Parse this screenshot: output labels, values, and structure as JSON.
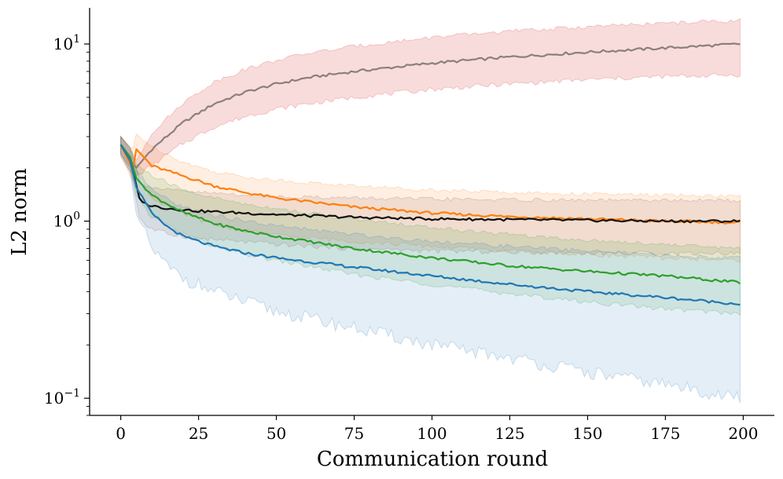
{
  "chart_data": {
    "type": "line",
    "title": "",
    "xlabel": "Communication round",
    "ylabel": "L2 norm",
    "xlim": [
      -10,
      210
    ],
    "ylim": [
      0.08,
      16
    ],
    "yscale": "log",
    "x_ticks": [
      0,
      25,
      50,
      75,
      100,
      125,
      150,
      175,
      200
    ],
    "x_tick_labels": [
      "0",
      "25",
      "50",
      "75",
      "100",
      "125",
      "150",
      "175",
      "200"
    ],
    "y_ticks": [
      0.1,
      1,
      10
    ],
    "y_tick_labels": [
      {
        "base": "10",
        "exp": "−1"
      },
      {
        "base": "10",
        "exp": "0"
      },
      {
        "base": "10",
        "exp": "1"
      }
    ],
    "legend": "none",
    "series": [
      {
        "name": "gray",
        "color": "#8c7f7f",
        "band_color": "#d62728",
        "x": [
          0,
          3,
          5,
          10,
          20,
          30,
          40,
          50,
          60,
          75,
          100,
          125,
          150,
          175,
          199
        ],
        "mean": [
          2.7,
          2.2,
          2.0,
          2.55,
          3.6,
          4.6,
          5.35,
          5.95,
          6.45,
          7.0,
          7.8,
          8.45,
          9.0,
          9.5,
          10.0
        ],
        "lower": [
          2.3,
          1.9,
          1.8,
          2.05,
          2.75,
          3.4,
          3.9,
          4.3,
          4.6,
          5.0,
          5.55,
          5.95,
          6.3,
          6.55,
          6.7
        ],
        "upper": [
          3.0,
          2.6,
          2.2,
          3.15,
          4.65,
          6.1,
          7.2,
          8.1,
          8.85,
          9.7,
          10.9,
          11.8,
          12.5,
          13.1,
          13.6
        ]
      },
      {
        "name": "orange",
        "color": "#ff7f0e",
        "band_color": "#ff7f0e",
        "x": [
          0,
          3,
          4,
          5,
          10,
          20,
          30,
          40,
          50,
          75,
          100,
          125,
          150,
          175,
          199
        ],
        "mean": [
          2.7,
          2.1,
          2.0,
          2.55,
          2.05,
          1.8,
          1.58,
          1.45,
          1.35,
          1.2,
          1.11,
          1.06,
          1.03,
          1.0,
          0.98
        ],
        "lower": [
          2.4,
          1.8,
          1.7,
          1.9,
          1.35,
          1.1,
          0.95,
          0.88,
          0.83,
          0.77,
          0.72,
          0.68,
          0.65,
          0.62,
          0.6
        ],
        "upper": [
          3.0,
          2.6,
          2.6,
          3.1,
          2.65,
          2.15,
          1.9,
          1.78,
          1.7,
          1.58,
          1.5,
          1.45,
          1.42,
          1.4,
          1.38
        ]
      },
      {
        "name": "black",
        "color": "#111111",
        "band_color": "#8c564b",
        "x": [
          0,
          3,
          5,
          6,
          8,
          10,
          15,
          25,
          50,
          75,
          100,
          125,
          150,
          175,
          199
        ],
        "mean": [
          2.7,
          2.3,
          1.6,
          1.35,
          1.25,
          1.22,
          1.18,
          1.14,
          1.09,
          1.05,
          1.03,
          1.02,
          1.01,
          1.0,
          1.0
        ],
        "lower": [
          2.4,
          2.0,
          1.3,
          1.05,
          0.95,
          0.9,
          0.85,
          0.8,
          0.74,
          0.7,
          0.68,
          0.67,
          0.66,
          0.66,
          0.66
        ],
        "upper": [
          3.0,
          2.6,
          2.0,
          1.7,
          1.6,
          1.55,
          1.5,
          1.45,
          1.38,
          1.35,
          1.33,
          1.32,
          1.31,
          1.31,
          1.31
        ]
      },
      {
        "name": "green",
        "color": "#2ca02c",
        "band_color": "#2ca02c",
        "x": [
          0,
          3,
          5,
          10,
          15,
          20,
          30,
          40,
          50,
          75,
          100,
          125,
          150,
          175,
          199
        ],
        "mean": [
          2.7,
          2.3,
          1.75,
          1.4,
          1.25,
          1.12,
          0.97,
          0.88,
          0.82,
          0.7,
          0.62,
          0.56,
          0.52,
          0.49,
          0.45
        ],
        "lower": [
          2.4,
          2.0,
          1.4,
          1.05,
          0.95,
          0.85,
          0.72,
          0.65,
          0.6,
          0.5,
          0.44,
          0.39,
          0.35,
          0.32,
          0.3
        ],
        "upper": [
          3.0,
          2.6,
          2.1,
          1.8,
          1.65,
          1.5,
          1.35,
          1.25,
          1.18,
          1.02,
          0.92,
          0.84,
          0.78,
          0.74,
          0.7
        ]
      },
      {
        "name": "blue",
        "color": "#1f77b4",
        "band_color": "#1f77b4",
        "x": [
          0,
          3,
          5,
          10,
          15,
          20,
          30,
          40,
          50,
          75,
          100,
          125,
          150,
          175,
          199
        ],
        "mean": [
          2.7,
          2.2,
          1.55,
          1.1,
          0.93,
          0.82,
          0.72,
          0.66,
          0.62,
          0.55,
          0.49,
          0.44,
          0.4,
          0.37,
          0.34
        ],
        "lower": [
          2.4,
          1.9,
          1.1,
          0.7,
          0.55,
          0.48,
          0.4,
          0.35,
          0.31,
          0.25,
          0.2,
          0.17,
          0.14,
          0.12,
          0.1
        ],
        "upper": [
          3.0,
          2.5,
          1.95,
          1.5,
          1.32,
          1.2,
          1.08,
          1.0,
          0.94,
          0.84,
          0.77,
          0.72,
          0.68,
          0.64,
          0.62
        ]
      }
    ]
  }
}
